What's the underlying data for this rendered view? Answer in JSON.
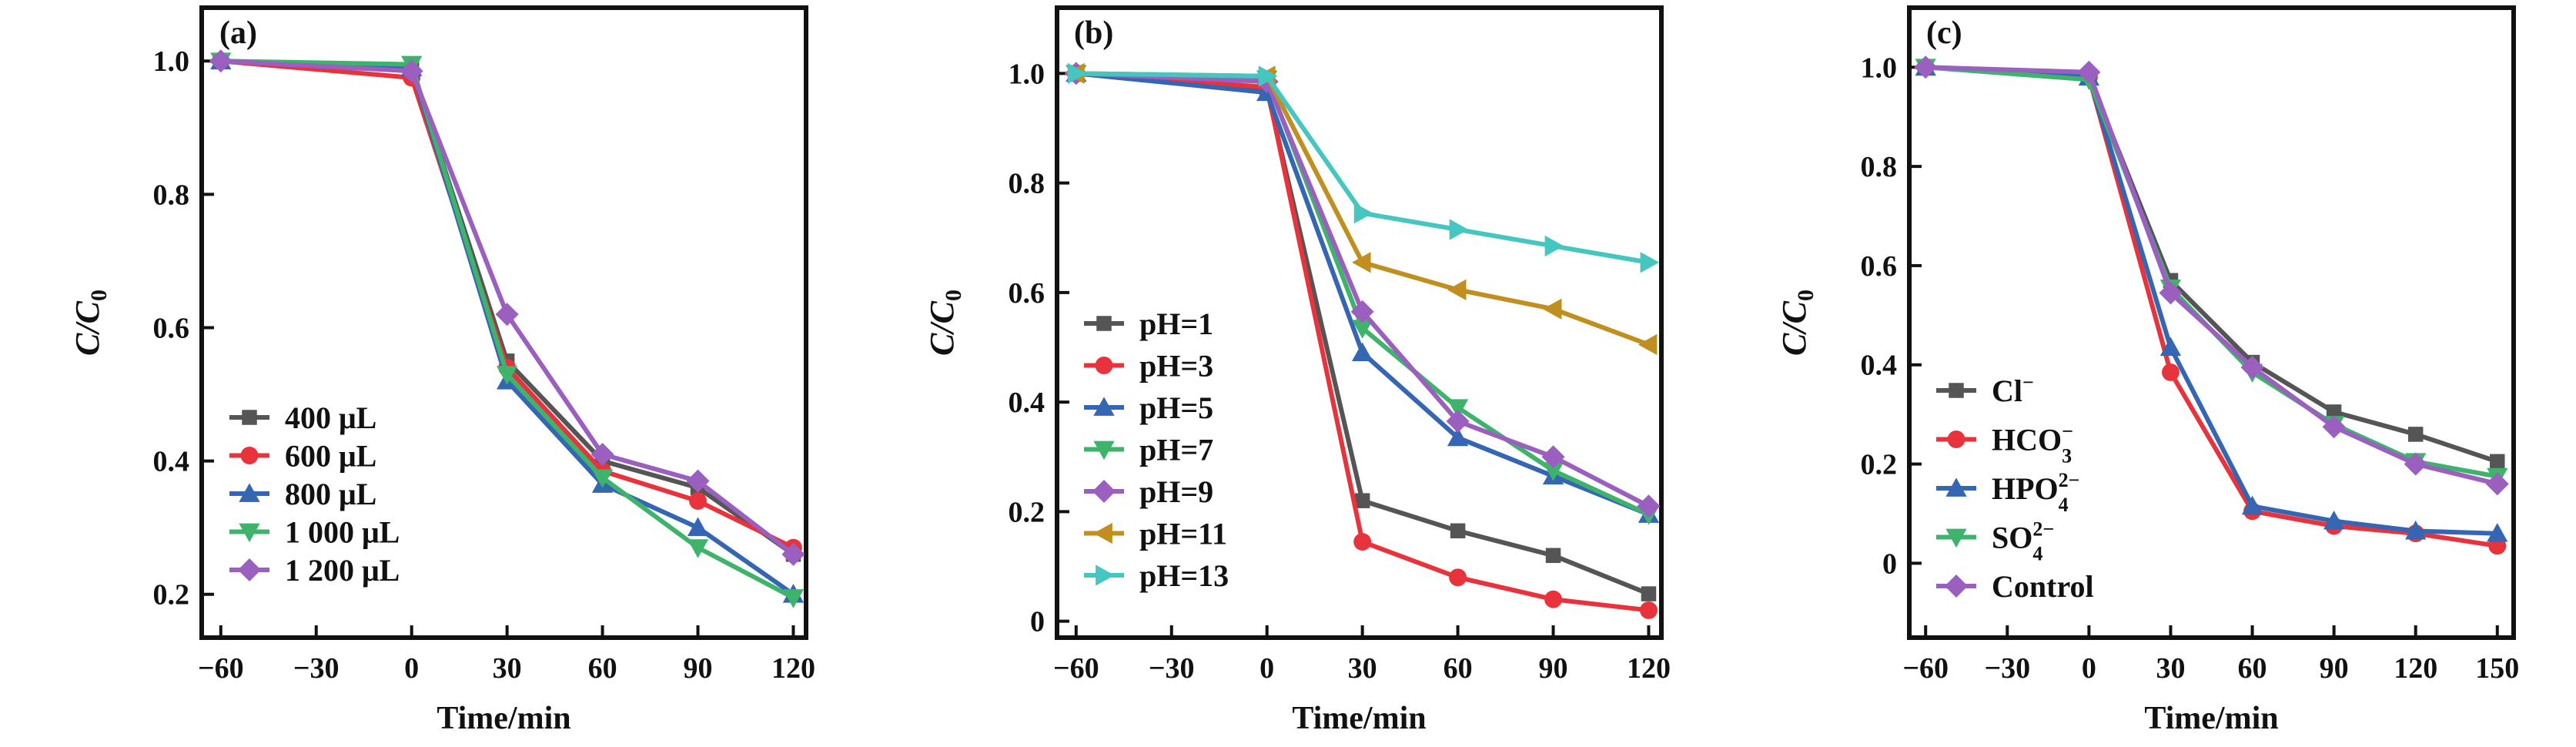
{
  "chart_data": [
    {
      "type": "line",
      "panel_label": "(a)",
      "xlabel": "Time/min",
      "ylabel": "C/C0",
      "xlim": [
        -66,
        124
      ],
      "ylim": [
        0.135,
        1.08
      ],
      "xticks": [
        -60,
        -30,
        0,
        30,
        60,
        90,
        120
      ],
      "xtick_labels": [
        "−60",
        "−30",
        "0",
        "30",
        "60",
        "90",
        "120"
      ],
      "yticks": [
        0.2,
        0.4,
        0.6,
        0.8,
        1.0
      ],
      "ytick_labels": [
        "0.2",
        "0.4",
        "0.6",
        "0.8",
        "1.0"
      ],
      "legend_position": "bottom-left",
      "x": [
        -60,
        0,
        30,
        60,
        90,
        120
      ],
      "series": [
        {
          "name": "400 μL",
          "color": "#555555",
          "marker": "square",
          "values": [
            1.0,
            0.99,
            0.55,
            0.4,
            0.36,
            0.26
          ]
        },
        {
          "name": "600 μL",
          "color": "#e8323c",
          "marker": "circle",
          "values": [
            1.0,
            0.975,
            0.54,
            0.385,
            0.34,
            0.27
          ]
        },
        {
          "name": "800 μL",
          "color": "#3466b4",
          "marker": "triangle-up",
          "values": [
            1.0,
            0.99,
            0.52,
            0.365,
            0.3,
            0.2
          ]
        },
        {
          "name": "1 000 μL",
          "color": "#3db36b",
          "marker": "triangle-down",
          "values": [
            1.0,
            0.995,
            0.53,
            0.375,
            0.27,
            0.195
          ]
        },
        {
          "name": "1 200 μL",
          "color": "#9b5fc0",
          "marker": "diamond",
          "values": [
            1.0,
            0.985,
            0.62,
            0.41,
            0.37,
            0.26
          ]
        }
      ]
    },
    {
      "type": "line",
      "panel_label": "(b)",
      "xlabel": "Time/min",
      "ylabel": "C/C0",
      "xlim": [
        -66,
        124
      ],
      "ylim": [
        -0.03,
        1.12
      ],
      "xticks": [
        -60,
        -30,
        0,
        30,
        60,
        90,
        120
      ],
      "xtick_labels": [
        "−60",
        "−30",
        "0",
        "30",
        "60",
        "90",
        "120"
      ],
      "yticks": [
        0,
        0.2,
        0.4,
        0.6,
        0.8,
        1.0
      ],
      "ytick_labels": [
        "0",
        "0.2",
        "0.4",
        "0.6",
        "0.8",
        "1.0"
      ],
      "legend_position": "bottom-left",
      "x": [
        -60,
        0,
        30,
        60,
        90,
        120
      ],
      "series": [
        {
          "name": "pH=1",
          "color": "#555555",
          "marker": "square",
          "values": [
            1.0,
            0.97,
            0.22,
            0.165,
            0.12,
            0.05
          ]
        },
        {
          "name": "pH=3",
          "color": "#e8323c",
          "marker": "circle",
          "values": [
            1.0,
            0.975,
            0.145,
            0.08,
            0.04,
            0.02
          ]
        },
        {
          "name": "pH=5",
          "color": "#3466b4",
          "marker": "triangle-up",
          "values": [
            1.0,
            0.965,
            0.49,
            0.335,
            0.265,
            0.195
          ]
        },
        {
          "name": "pH=7",
          "color": "#3db36b",
          "marker": "triangle-down",
          "values": [
            1.0,
            0.99,
            0.535,
            0.39,
            0.275,
            0.195
          ]
        },
        {
          "name": "pH=9",
          "color": "#9b5fc0",
          "marker": "diamond",
          "values": [
            1.0,
            0.985,
            0.565,
            0.365,
            0.3,
            0.21
          ]
        },
        {
          "name": "pH=11",
          "color": "#c18f1f",
          "marker": "triangle-left",
          "values": [
            1.0,
            0.995,
            0.655,
            0.605,
            0.57,
            0.505
          ]
        },
        {
          "name": "pH=13",
          "color": "#45c6c0",
          "marker": "triangle-right",
          "values": [
            1.0,
            0.995,
            0.745,
            0.715,
            0.685,
            0.655
          ]
        }
      ]
    },
    {
      "type": "line",
      "panel_label": "(c)",
      "xlabel": "Time/min",
      "ylabel": "C/C0",
      "xlim": [
        -66,
        156
      ],
      "ylim": [
        -0.15,
        1.12
      ],
      "xticks": [
        -60,
        -30,
        0,
        30,
        60,
        90,
        120,
        150
      ],
      "xtick_labels": [
        "−60",
        "−30",
        "0",
        "30",
        "60",
        "90",
        "120",
        "150"
      ],
      "yticks": [
        0,
        0.2,
        0.4,
        0.6,
        0.8,
        1.0
      ],
      "ytick_labels": [
        "0",
        "0.2",
        "0.4",
        "0.6",
        "0.8",
        "1.0"
      ],
      "legend_position": "bottom-left",
      "x": [
        -60,
        0,
        30,
        60,
        90,
        120,
        150
      ],
      "series": [
        {
          "name": "Cl−",
          "label_main": "Cl",
          "label_sup": "−",
          "label_sub": "",
          "color": "#555555",
          "marker": "square",
          "values": [
            1.0,
            0.98,
            0.57,
            0.405,
            0.305,
            0.26,
            0.205
          ]
        },
        {
          "name": "HCO3−",
          "label_main": "HCO",
          "label_sup": "−",
          "label_sub": "3",
          "color": "#e8323c",
          "marker": "circle",
          "values": [
            1.0,
            0.98,
            0.385,
            0.105,
            0.075,
            0.06,
            0.035
          ]
        },
        {
          "name": "HPO42−",
          "label_main": "HPO",
          "label_sup": "2−",
          "label_sub": "4",
          "color": "#3466b4",
          "marker": "triangle-up",
          "values": [
            1.0,
            0.98,
            0.435,
            0.115,
            0.085,
            0.065,
            0.06
          ]
        },
        {
          "name": "SO42−",
          "label_main": "SO",
          "label_sup": "2−",
          "label_sub": "4",
          "color": "#3db36b",
          "marker": "triangle-down",
          "values": [
            1.0,
            0.975,
            0.555,
            0.385,
            0.28,
            0.205,
            0.175
          ]
        },
        {
          "name": "Control",
          "label_main": "Control",
          "label_sup": "",
          "label_sub": "",
          "color": "#9b5fc0",
          "marker": "diamond",
          "values": [
            1.0,
            0.99,
            0.545,
            0.395,
            0.275,
            0.2,
            0.16
          ]
        }
      ]
    }
  ]
}
